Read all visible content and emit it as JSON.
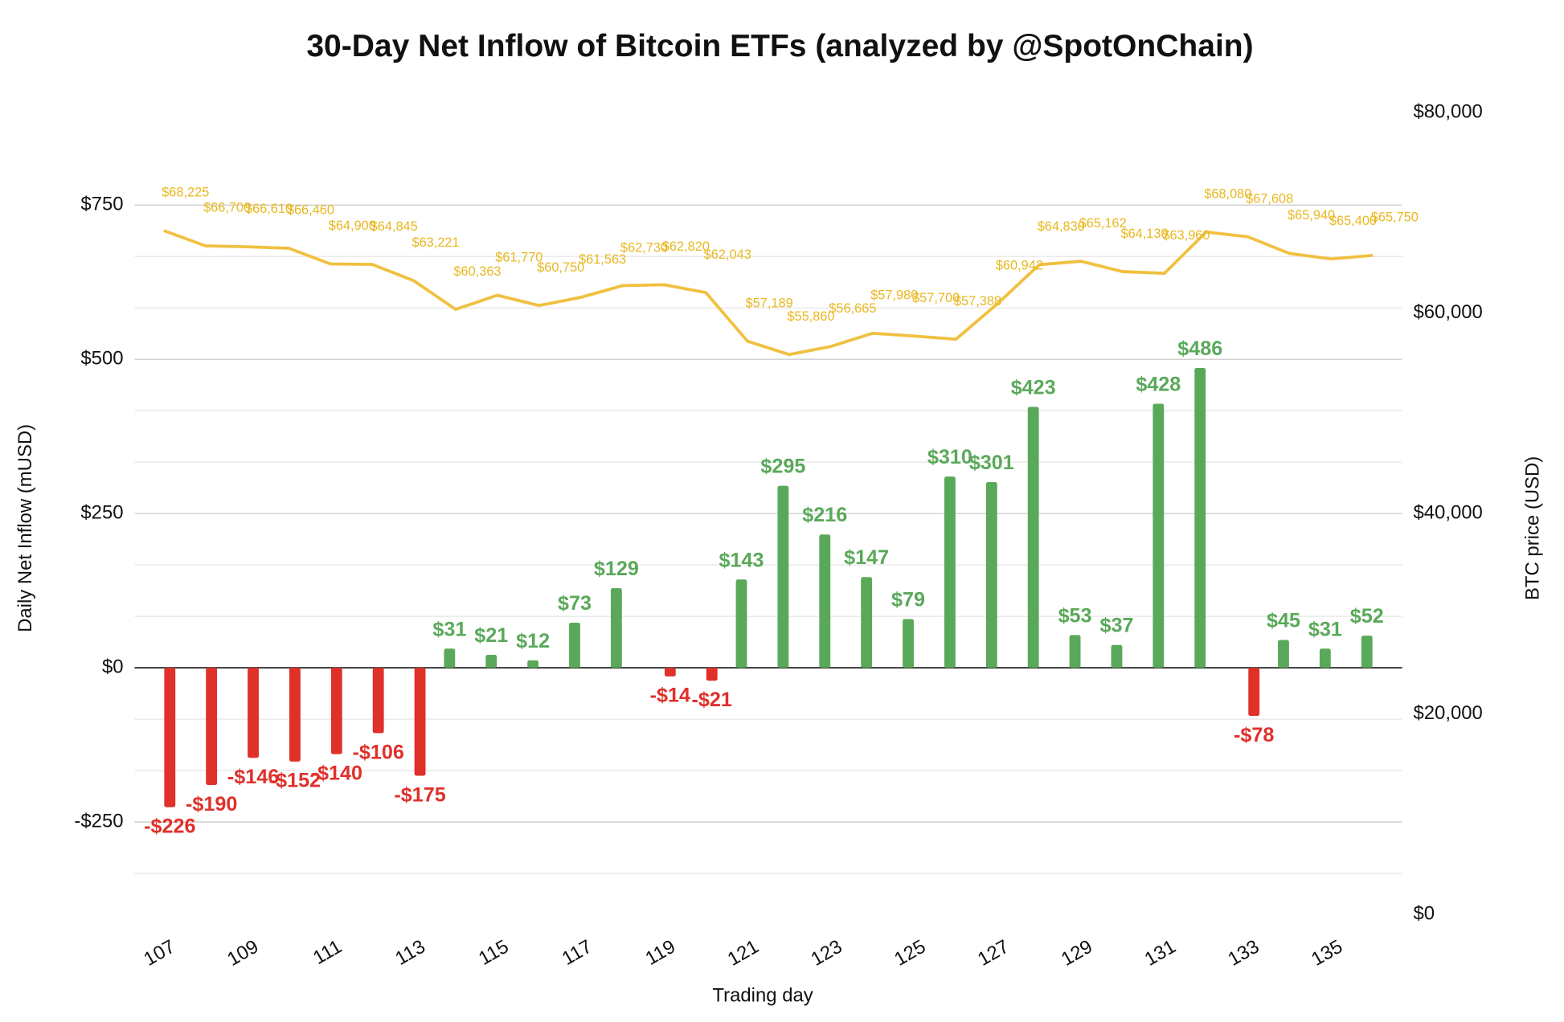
{
  "chart_data": {
    "type": "bar",
    "title": "30-Day Net Inflow of Bitcoin ETFs (analyzed by @SpotOnChain)",
    "xlabel": "Trading day",
    "ylabel": "Daily Net Inflow (mUSD)",
    "y2label": "BTC price (USD)",
    "x": [
      107,
      108,
      109,
      110,
      111,
      112,
      113,
      114,
      115,
      116,
      117,
      118,
      119,
      120,
      121,
      122,
      123,
      124,
      125,
      126,
      127,
      128,
      129,
      130,
      131,
      132,
      133,
      134,
      135,
      136
    ],
    "xlim": [
      106.3,
      136.7
    ],
    "xticks": [
      107,
      109,
      111,
      113,
      115,
      117,
      119,
      121,
      123,
      125,
      127,
      129,
      131,
      133,
      135
    ],
    "ylim": [
      -400,
      900
    ],
    "yticks": [
      {
        "value": -250,
        "label": "-$250"
      },
      {
        "value": 0,
        "label": "$0"
      },
      {
        "value": 250,
        "label": "$250"
      },
      {
        "value": 500,
        "label": "$500"
      },
      {
        "value": 750,
        "label": "$750"
      }
    ],
    "y2lim": [
      0,
      80000
    ],
    "y2ticks": [
      {
        "value": 0,
        "label": "$0"
      },
      {
        "value": 20000,
        "label": "$20,000"
      },
      {
        "value": 40000,
        "label": "$40,000"
      },
      {
        "value": 60000,
        "label": "$60,000"
      },
      {
        "value": 80000,
        "label": "$80,000"
      }
    ],
    "grid": true,
    "series": [
      {
        "type": "bar",
        "color": "#5aa95a",
        "values": [
          null,
          null,
          null,
          null,
          null,
          null,
          null,
          31,
          21,
          12,
          73,
          129,
          null,
          null,
          143,
          295,
          216,
          147,
          79,
          310,
          301,
          423,
          53,
          37,
          428,
          486,
          null,
          45,
          31,
          52
        ],
        "value_labels": [
          null,
          null,
          null,
          null,
          null,
          null,
          null,
          "$31",
          "$21",
          "$12",
          "$73",
          "$129",
          null,
          null,
          "$143",
          "$295",
          "$216",
          "$147",
          "$79",
          "$310",
          "$301",
          "$423",
          "$53",
          "$37",
          "$428",
          "$486",
          null,
          "$45",
          "$31",
          "$52"
        ]
      },
      {
        "type": "bar",
        "color": "#e0302a",
        "values": [
          -226,
          -190,
          -146,
          -152,
          -140,
          -106,
          -175,
          null,
          null,
          null,
          null,
          null,
          -14,
          -21,
          null,
          null,
          null,
          null,
          null,
          null,
          null,
          null,
          null,
          null,
          null,
          null,
          -78,
          null,
          null,
          null
        ],
        "value_labels": [
          "-$226",
          "-$190",
          "-$146",
          "-$152",
          "-$140",
          "-$106",
          "-$175",
          null,
          null,
          null,
          null,
          null,
          "-$14",
          "-$21",
          null,
          null,
          null,
          null,
          null,
          null,
          null,
          null,
          null,
          null,
          null,
          null,
          "-$78",
          null,
          null,
          null
        ]
      },
      {
        "type": "line",
        "axis": "y2",
        "color": "#f0c040",
        "values": [
          68225,
          66700,
          66610,
          66460,
          64900,
          64845,
          63221,
          60363,
          61770,
          60750,
          61563,
          62730,
          62820,
          62043,
          57189,
          55860,
          56665,
          57980,
          57700,
          57388,
          60942,
          64830,
          65162,
          64130,
          63960,
          68080,
          67608,
          65940,
          65400,
          65750
        ],
        "value_labels": [
          "$68,225",
          "$66,700",
          "$66,610",
          "$66,460",
          "$64,900",
          "$64,845",
          "$63,221",
          "$60,363",
          "$61,770",
          "$60,750",
          "$61,563",
          "$62,730",
          "$62,820",
          "$62,043",
          "$57,189",
          "$55,860",
          "$56,665",
          "$57,980",
          "$57,700",
          "$57,388",
          "$60,942",
          "$64,830",
          "$65,162",
          "$64,130",
          "$63,960",
          "$68,080",
          "$67,608",
          "$65,940",
          "$65,400",
          "$65,750"
        ]
      }
    ]
  }
}
